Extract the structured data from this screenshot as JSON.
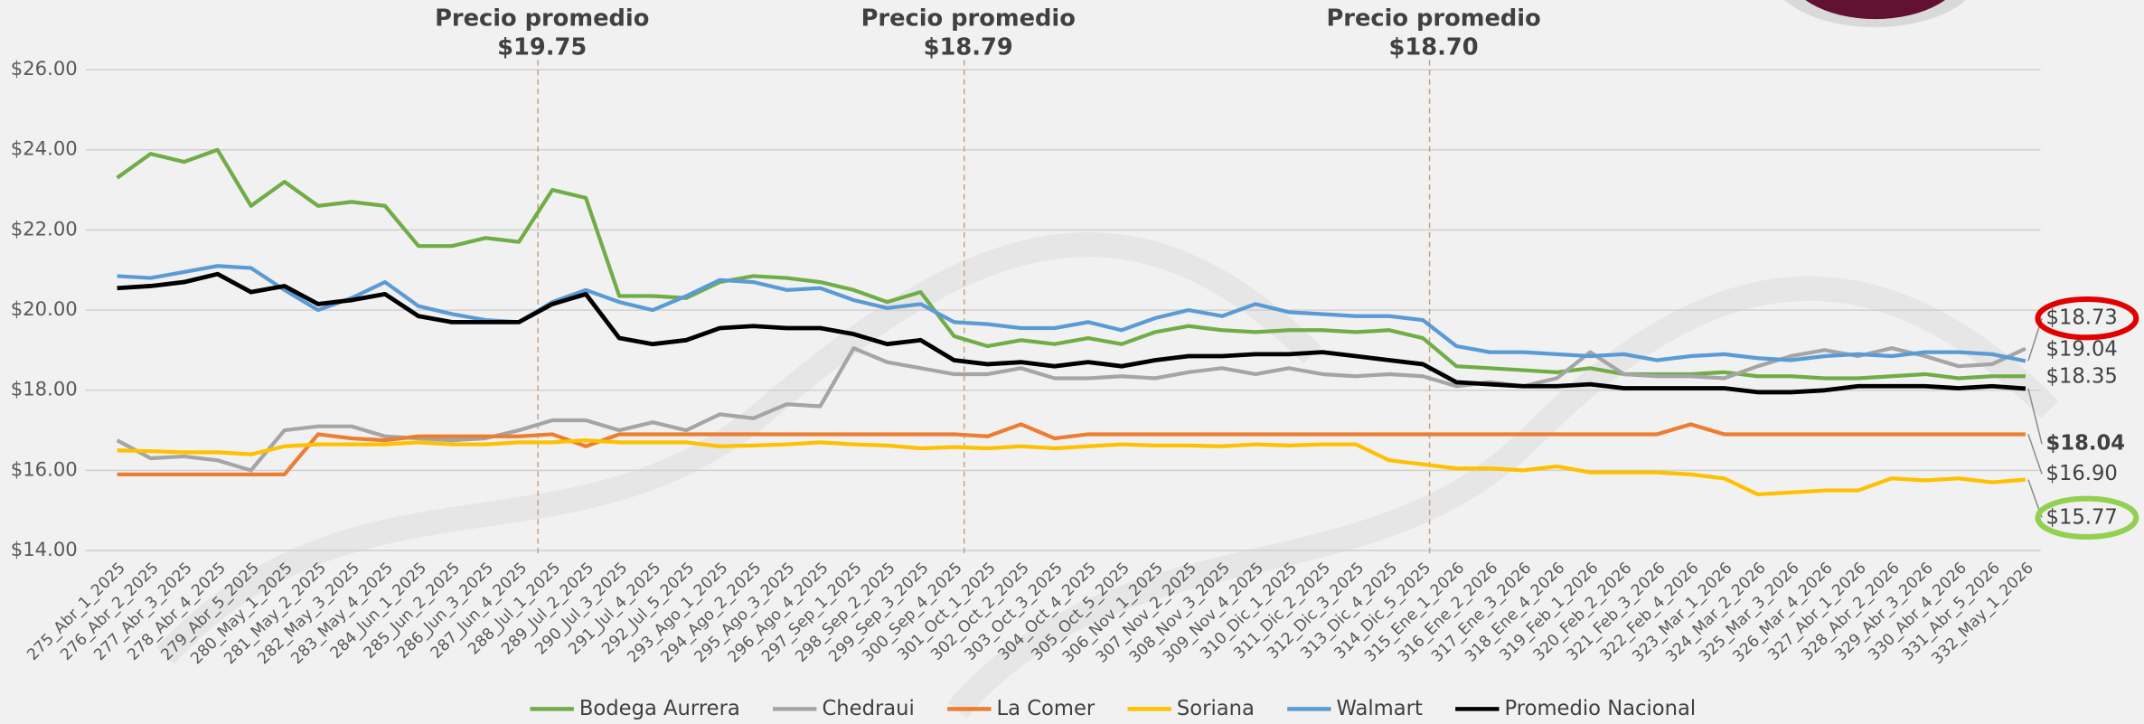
{
  "chart_data": {
    "type": "line",
    "categories": [
      "275_Abr_1_2025",
      "276_Abr_2_2025",
      "277_Abr_3_2025",
      "278_Abr_4_2025",
      "279_Abr_5_2025",
      "280_May_1_2025",
      "281_May_2_2025",
      "282_May_3_2025",
      "283_May_4_2025",
      "284_Jun_1_2025",
      "285_Jun_2_2025",
      "286_Jun_3_2025",
      "287_Jun_4_2025",
      "288_Jul_1_2025",
      "289_Jul_2_2025",
      "290_Jul_3_2025",
      "291_Jul_4_2025",
      "292_Jul_5_2025",
      "293_Ago_1_2025",
      "294_Ago_2_2025",
      "295_Ago_3_2025",
      "296_Ago_4_2025",
      "297_Sep_1_2025",
      "298_Sep_2_2025",
      "299_Sep_3_2025",
      "300_Sep_4_2025",
      "301_Oct_1_2025",
      "302_Oct_2_2025",
      "303_Oct_3_2025",
      "304_Oct_4_2025",
      "305_Oct_5_2025",
      "306_Nov_1_2025",
      "307_Nov_2_2025",
      "308_Nov_3_2025",
      "309_Nov_4_2025",
      "310_Dic_1_2025",
      "311_Dic_2_2025",
      "312_Dic_3_2025",
      "313_Dic_4_2025",
      "314_Dic_5_2025",
      "315_Ene_1_2026",
      "316_Ene_2_2026",
      "317_Ene_3_2026",
      "318_Ene_4_2026",
      "319_Feb_1_2026",
      "320_Feb_2_2026",
      "321_Feb_3_2026",
      "322_Feb_4_2026",
      "323_Mar_1_2026",
      "324_Mar_2_2026",
      "325_Mar_3_2026",
      "326_Mar_4_2026",
      "327_Abr_1_2026",
      "328_Abr_2_2026",
      "329_Abr_3_2026",
      "330_Abr_4_2026",
      "331_Abr_5_2026",
      "332_May_1_2026"
    ],
    "series": [
      {
        "name": "Bodega Aurrera",
        "color": "#70ad47",
        "values": [
          23.3,
          23.9,
          23.7,
          24.0,
          22.6,
          23.2,
          22.6,
          22.7,
          22.6,
          21.6,
          21.6,
          21.8,
          21.7,
          23.0,
          22.8,
          20.35,
          20.35,
          20.3,
          20.7,
          20.85,
          20.8,
          20.7,
          20.5,
          20.2,
          20.45,
          19.35,
          19.1,
          19.25,
          19.15,
          19.3,
          19.15,
          19.45,
          19.6,
          19.5,
          19.45,
          19.5,
          19.5,
          19.45,
          19.5,
          19.3,
          18.6,
          18.55,
          18.5,
          18.45,
          18.55,
          18.4,
          18.4,
          18.4,
          18.45,
          18.35,
          18.35,
          18.3,
          18.3,
          18.35,
          18.4,
          18.3,
          18.35,
          18.35
        ],
        "value_labels": [
          null,
          null,
          null,
          null,
          null,
          null,
          null,
          null,
          null,
          null,
          null,
          null,
          null,
          null,
          null,
          null,
          null,
          null,
          null,
          null,
          null,
          null,
          null,
          null,
          null,
          null,
          null,
          null,
          null,
          null,
          null,
          null,
          null,
          null,
          null,
          null,
          null,
          null,
          null,
          null,
          null,
          null,
          null,
          null,
          null,
          null,
          null,
          null,
          null,
          null,
          null,
          null,
          null,
          null,
          null,
          null,
          null,
          "$18.35"
        ]
      },
      {
        "name": "Chedraui",
        "color": "#a5a5a5",
        "values": [
          16.75,
          16.3,
          16.35,
          16.25,
          16.0,
          17.0,
          17.1,
          17.1,
          16.85,
          16.8,
          16.75,
          16.8,
          17.0,
          17.25,
          17.25,
          17.0,
          17.2,
          17.0,
          17.4,
          17.3,
          17.65,
          17.6,
          19.05,
          18.7,
          18.55,
          18.4,
          18.4,
          18.55,
          18.3,
          18.3,
          18.35,
          18.3,
          18.45,
          18.55,
          18.4,
          18.55,
          18.4,
          18.35,
          18.4,
          18.35,
          18.1,
          18.2,
          18.1,
          18.3,
          18.95,
          18.4,
          18.35,
          18.35,
          18.3,
          18.6,
          18.85,
          19.0,
          18.85,
          19.05,
          18.85,
          18.6,
          18.65,
          19.04
        ],
        "value_labels": [
          null,
          null,
          null,
          null,
          null,
          null,
          null,
          null,
          null,
          null,
          null,
          null,
          null,
          null,
          null,
          null,
          null,
          null,
          null,
          null,
          null,
          null,
          null,
          null,
          null,
          null,
          null,
          null,
          null,
          null,
          null,
          null,
          null,
          null,
          null,
          null,
          null,
          null,
          null,
          null,
          null,
          null,
          null,
          null,
          null,
          null,
          null,
          null,
          null,
          null,
          null,
          null,
          null,
          null,
          null,
          null,
          null,
          "$19.04"
        ]
      },
      {
        "name": "La Comer",
        "color": "#ed7d31",
        "values": [
          15.9,
          15.9,
          15.9,
          15.9,
          15.9,
          15.9,
          16.9,
          16.8,
          16.75,
          16.85,
          16.85,
          16.85,
          16.85,
          16.9,
          16.6,
          16.9,
          16.9,
          16.9,
          16.9,
          16.9,
          16.9,
          16.9,
          16.9,
          16.9,
          16.9,
          16.9,
          16.85,
          17.15,
          16.8,
          16.9,
          16.9,
          16.9,
          16.9,
          16.9,
          16.9,
          16.9,
          16.9,
          16.9,
          16.9,
          16.9,
          16.9,
          16.9,
          16.9,
          16.9,
          16.9,
          16.9,
          16.9,
          17.15,
          16.9,
          16.9,
          16.9,
          16.9,
          16.9,
          16.9,
          16.9,
          16.9,
          16.9,
          16.9
        ],
        "value_labels": [
          null,
          null,
          null,
          null,
          null,
          null,
          null,
          null,
          null,
          null,
          null,
          null,
          null,
          null,
          null,
          null,
          null,
          null,
          null,
          null,
          null,
          null,
          null,
          null,
          null,
          null,
          null,
          null,
          null,
          null,
          null,
          null,
          null,
          null,
          null,
          null,
          null,
          null,
          null,
          null,
          null,
          null,
          null,
          null,
          null,
          null,
          null,
          null,
          null,
          null,
          null,
          null,
          null,
          null,
          null,
          null,
          null,
          "$16.90"
        ]
      },
      {
        "name": "Soriana",
        "color": "#ffc000",
        "values": [
          16.5,
          16.48,
          16.45,
          16.45,
          16.4,
          16.6,
          16.65,
          16.65,
          16.65,
          16.7,
          16.65,
          16.65,
          16.7,
          16.7,
          16.75,
          16.7,
          16.7,
          16.7,
          16.6,
          16.62,
          16.65,
          16.7,
          16.65,
          16.62,
          16.55,
          16.58,
          16.55,
          16.6,
          16.55,
          16.6,
          16.65,
          16.62,
          16.62,
          16.6,
          16.65,
          16.62,
          16.65,
          16.65,
          16.25,
          16.15,
          16.05,
          16.05,
          16.0,
          16.1,
          15.95,
          15.95,
          15.95,
          15.9,
          15.8,
          15.4,
          15.45,
          15.5,
          15.5,
          15.8,
          15.75,
          15.8,
          15.7,
          15.77
        ],
        "value_labels": [
          null,
          null,
          null,
          null,
          null,
          null,
          null,
          null,
          null,
          null,
          null,
          null,
          null,
          null,
          null,
          null,
          null,
          null,
          null,
          null,
          null,
          null,
          null,
          null,
          null,
          null,
          null,
          null,
          null,
          null,
          null,
          null,
          null,
          null,
          null,
          null,
          null,
          null,
          null,
          null,
          null,
          null,
          null,
          null,
          null,
          null,
          null,
          null,
          null,
          null,
          null,
          null,
          null,
          null,
          null,
          null,
          null,
          "$15.77"
        ]
      },
      {
        "name": "Walmart",
        "color": "#5b9bd5",
        "values": [
          20.85,
          20.8,
          20.95,
          21.1,
          21.05,
          20.5,
          20.0,
          20.3,
          20.7,
          20.1,
          19.9,
          19.75,
          19.7,
          20.2,
          20.5,
          20.2,
          20.0,
          20.35,
          20.75,
          20.7,
          20.5,
          20.55,
          20.25,
          20.05,
          20.15,
          19.7,
          19.65,
          19.55,
          19.55,
          19.7,
          19.5,
          19.8,
          20.0,
          19.85,
          20.15,
          19.95,
          19.9,
          19.85,
          19.85,
          19.75,
          19.1,
          18.95,
          18.95,
          18.9,
          18.85,
          18.9,
          18.75,
          18.85,
          18.9,
          18.8,
          18.75,
          18.85,
          18.9,
          18.85,
          18.95,
          18.95,
          18.9,
          18.73
        ],
        "value_labels": [
          null,
          null,
          null,
          null,
          null,
          null,
          null,
          null,
          null,
          null,
          null,
          null,
          null,
          null,
          null,
          null,
          null,
          null,
          null,
          null,
          null,
          null,
          null,
          null,
          null,
          null,
          null,
          null,
          null,
          null,
          null,
          null,
          null,
          null,
          null,
          null,
          null,
          null,
          null,
          null,
          null,
          null,
          null,
          null,
          null,
          null,
          null,
          null,
          null,
          null,
          null,
          null,
          null,
          null,
          null,
          null,
          null,
          "$18.73"
        ]
      },
      {
        "name": "Promedio Nacional",
        "color": "#000000",
        "values": [
          20.55,
          20.6,
          20.7,
          20.9,
          20.45,
          20.6,
          20.15,
          20.25,
          20.4,
          19.85,
          19.7,
          19.7,
          19.7,
          20.15,
          20.4,
          19.3,
          19.15,
          19.25,
          19.55,
          19.6,
          19.55,
          19.55,
          19.4,
          19.15,
          19.25,
          18.75,
          18.65,
          18.7,
          18.6,
          18.7,
          18.6,
          18.75,
          18.85,
          18.85,
          18.9,
          18.9,
          18.95,
          18.85,
          18.75,
          18.65,
          18.2,
          18.15,
          18.1,
          18.1,
          18.15,
          18.05,
          18.05,
          18.05,
          18.05,
          17.95,
          17.95,
          18.0,
          18.1,
          18.1,
          18.1,
          18.05,
          18.1,
          18.04
        ],
        "value_labels": [
          null,
          null,
          null,
          null,
          null,
          null,
          null,
          null,
          null,
          null,
          null,
          null,
          null,
          null,
          null,
          null,
          null,
          null,
          null,
          null,
          null,
          null,
          null,
          null,
          null,
          null,
          null,
          null,
          null,
          null,
          null,
          null,
          null,
          null,
          null,
          null,
          null,
          null,
          null,
          null,
          null,
          null,
          null,
          null,
          null,
          null,
          null,
          null,
          null,
          null,
          null,
          null,
          null,
          null,
          null,
          null,
          null,
          "$18.04"
        ]
      }
    ],
    "annotations": [
      {
        "title": "Precio promedio",
        "value": "$19.75"
      },
      {
        "title": "Precio promedio",
        "value": "$18.79"
      },
      {
        "title": "Precio promedio",
        "value": "$18.70"
      }
    ],
    "ylim": [
      14,
      26
    ],
    "yticks": [
      {
        "value": 14,
        "label": "$14.00"
      },
      {
        "value": 16,
        "label": "$16.00"
      },
      {
        "value": 18,
        "label": "$18.00"
      },
      {
        "value": 20,
        "label": "$20.00"
      },
      {
        "value": 22,
        "label": "$22.00"
      },
      {
        "value": 24,
        "label": "$24.00"
      },
      {
        "value": 26,
        "label": "$26.00"
      }
    ],
    "grid": true,
    "legend": "bottom"
  }
}
